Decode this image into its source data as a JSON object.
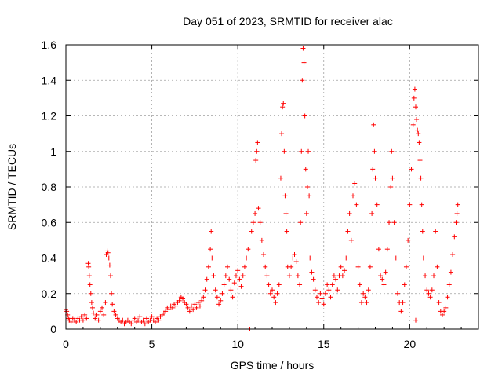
{
  "chart_data": {
    "type": "scatter",
    "title": "Day 051 of 2023, SRMTID for receiver alac",
    "xlabel": "GPS time / hours",
    "ylabel": "SRMTID / TECUs",
    "xlim": [
      0,
      24
    ],
    "ylim": [
      0,
      1.6
    ],
    "xticks": [
      0,
      5,
      10,
      15,
      20
    ],
    "xtick_labels": [
      "0",
      "5",
      "10",
      "15",
      "20"
    ],
    "yticks": [
      0,
      0.2,
      0.4,
      0.6,
      0.8,
      1.0,
      1.2,
      1.4,
      1.6
    ],
    "ytick_labels": [
      "0",
      "0.2",
      "0.4",
      "0.6",
      "0.8",
      "1",
      "1.2",
      "1.4",
      "1.6"
    ],
    "grid": true,
    "marker": "+",
    "color": "#ff0000",
    "series": [
      {
        "name": "SRMTID",
        "points": [
          [
            0.0,
            0.11
          ],
          [
            0.05,
            0.1
          ],
          [
            0.1,
            0.08
          ],
          [
            0.15,
            0.06
          ],
          [
            0.2,
            0.05
          ],
          [
            0.3,
            0.04
          ],
          [
            0.4,
            0.06
          ],
          [
            0.5,
            0.05
          ],
          [
            0.6,
            0.04
          ],
          [
            0.7,
            0.06
          ],
          [
            0.8,
            0.05
          ],
          [
            0.9,
            0.07
          ],
          [
            1.0,
            0.05
          ],
          [
            1.1,
            0.08
          ],
          [
            1.2,
            0.06
          ],
          [
            1.3,
            0.37
          ],
          [
            1.33,
            0.35
          ],
          [
            1.36,
            0.3
          ],
          [
            1.4,
            0.25
          ],
          [
            1.45,
            0.2
          ],
          [
            1.5,
            0.15
          ],
          [
            1.55,
            0.12
          ],
          [
            1.6,
            0.09
          ],
          [
            1.7,
            0.06
          ],
          [
            1.8,
            0.08
          ],
          [
            1.9,
            0.05
          ],
          [
            2.0,
            0.1
          ],
          [
            2.1,
            0.12
          ],
          [
            2.2,
            0.08
          ],
          [
            2.3,
            0.15
          ],
          [
            2.35,
            0.42
          ],
          [
            2.4,
            0.44
          ],
          [
            2.45,
            0.43
          ],
          [
            2.5,
            0.4
          ],
          [
            2.55,
            0.36
          ],
          [
            2.6,
            0.3
          ],
          [
            2.65,
            0.2
          ],
          [
            2.7,
            0.14
          ],
          [
            2.8,
            0.1
          ],
          [
            2.9,
            0.08
          ],
          [
            3.0,
            0.06
          ],
          [
            3.1,
            0.05
          ],
          [
            3.2,
            0.04
          ],
          [
            3.3,
            0.05
          ],
          [
            3.4,
            0.03
          ],
          [
            3.5,
            0.04
          ],
          [
            3.6,
            0.05
          ],
          [
            3.7,
            0.04
          ],
          [
            3.8,
            0.03
          ],
          [
            3.9,
            0.05
          ],
          [
            4.0,
            0.06
          ],
          [
            4.1,
            0.04
          ],
          [
            4.2,
            0.05
          ],
          [
            4.3,
            0.07
          ],
          [
            4.4,
            0.04
          ],
          [
            4.5,
            0.05
          ],
          [
            4.6,
            0.03
          ],
          [
            4.7,
            0.06
          ],
          [
            4.8,
            0.04
          ],
          [
            4.9,
            0.05
          ],
          [
            5.0,
            0.07
          ],
          [
            5.1,
            0.05
          ],
          [
            5.2,
            0.04
          ],
          [
            5.3,
            0.06
          ],
          [
            5.4,
            0.05
          ],
          [
            5.5,
            0.07
          ],
          [
            5.6,
            0.08
          ],
          [
            5.7,
            0.09
          ],
          [
            5.8,
            0.1
          ],
          [
            5.9,
            0.12
          ],
          [
            6.0,
            0.11
          ],
          [
            6.1,
            0.13
          ],
          [
            6.2,
            0.12
          ],
          [
            6.3,
            0.14
          ],
          [
            6.4,
            0.13
          ],
          [
            6.5,
            0.15
          ],
          [
            6.6,
            0.16
          ],
          [
            6.7,
            0.18
          ],
          [
            6.8,
            0.17
          ],
          [
            6.9,
            0.15
          ],
          [
            7.0,
            0.14
          ],
          [
            7.1,
            0.12
          ],
          [
            7.2,
            0.1
          ],
          [
            7.3,
            0.13
          ],
          [
            7.4,
            0.11
          ],
          [
            7.5,
            0.14
          ],
          [
            7.6,
            0.12
          ],
          [
            7.7,
            0.15
          ],
          [
            7.8,
            0.13
          ],
          [
            7.9,
            0.16
          ],
          [
            8.0,
            0.18
          ],
          [
            8.1,
            0.22
          ],
          [
            8.2,
            0.28
          ],
          [
            8.3,
            0.35
          ],
          [
            8.4,
            0.45
          ],
          [
            8.45,
            0.55
          ],
          [
            8.5,
            0.4
          ],
          [
            8.6,
            0.3
          ],
          [
            8.7,
            0.22
          ],
          [
            8.8,
            0.18
          ],
          [
            8.9,
            0.14
          ],
          [
            9.0,
            0.16
          ],
          [
            9.1,
            0.2
          ],
          [
            9.2,
            0.25
          ],
          [
            9.3,
            0.3
          ],
          [
            9.4,
            0.35
          ],
          [
            9.5,
            0.28
          ],
          [
            9.6,
            0.22
          ],
          [
            9.7,
            0.18
          ],
          [
            9.8,
            0.26
          ],
          [
            9.9,
            0.3
          ],
          [
            10.0,
            0.33
          ],
          [
            10.1,
            0.28
          ],
          [
            10.2,
            0.24
          ],
          [
            10.3,
            0.3
          ],
          [
            10.4,
            0.35
          ],
          [
            10.5,
            0.4
          ],
          [
            10.6,
            0.45
          ],
          [
            10.7,
            0.0
          ],
          [
            10.8,
            0.55
          ],
          [
            10.9,
            0.6
          ],
          [
            11.0,
            0.65
          ],
          [
            11.05,
            0.95
          ],
          [
            11.1,
            1.0
          ],
          [
            11.15,
            1.05
          ],
          [
            11.2,
            0.68
          ],
          [
            11.3,
            0.6
          ],
          [
            11.4,
            0.5
          ],
          [
            11.5,
            0.42
          ],
          [
            11.6,
            0.35
          ],
          [
            11.7,
            0.3
          ],
          [
            11.8,
            0.25
          ],
          [
            11.9,
            0.2
          ],
          [
            12.0,
            0.22
          ],
          [
            12.1,
            0.18
          ],
          [
            12.2,
            0.15
          ],
          [
            12.3,
            0.2
          ],
          [
            12.4,
            0.25
          ],
          [
            12.5,
            0.85
          ],
          [
            12.55,
            1.1
          ],
          [
            12.6,
            1.25
          ],
          [
            12.65,
            1.27
          ],
          [
            12.7,
            1.0
          ],
          [
            12.75,
            0.75
          ],
          [
            12.8,
            0.65
          ],
          [
            12.85,
            0.55
          ],
          [
            12.9,
            0.35
          ],
          [
            13.0,
            0.3
          ],
          [
            13.1,
            0.35
          ],
          [
            13.2,
            0.4
          ],
          [
            13.3,
            0.42
          ],
          [
            13.4,
            0.38
          ],
          [
            13.5,
            0.3
          ],
          [
            13.6,
            0.25
          ],
          [
            13.65,
            0.6
          ],
          [
            13.7,
            1.0
          ],
          [
            13.75,
            1.4
          ],
          [
            13.8,
            1.58
          ],
          [
            13.85,
            1.5
          ],
          [
            13.9,
            1.2
          ],
          [
            13.95,
            0.9
          ],
          [
            14.0,
            0.65
          ],
          [
            14.05,
            0.8
          ],
          [
            14.1,
            1.0
          ],
          [
            14.15,
            0.75
          ],
          [
            14.2,
            0.4
          ],
          [
            14.3,
            0.32
          ],
          [
            14.4,
            0.28
          ],
          [
            14.5,
            0.22
          ],
          [
            14.6,
            0.18
          ],
          [
            14.7,
            0.15
          ],
          [
            14.8,
            0.2
          ],
          [
            14.9,
            0.17
          ],
          [
            15.0,
            0.14
          ],
          [
            15.1,
            0.2
          ],
          [
            15.2,
            0.25
          ],
          [
            15.3,
            0.22
          ],
          [
            15.4,
            0.18
          ],
          [
            15.5,
            0.25
          ],
          [
            15.6,
            0.3
          ],
          [
            15.7,
            0.28
          ],
          [
            15.8,
            0.22
          ],
          [
            15.9,
            0.3
          ],
          [
            16.0,
            0.35
          ],
          [
            16.1,
            0.3
          ],
          [
            16.2,
            0.33
          ],
          [
            16.3,
            0.4
          ],
          [
            16.4,
            0.55
          ],
          [
            16.5,
            0.65
          ],
          [
            16.6,
            0.5
          ],
          [
            16.7,
            0.75
          ],
          [
            16.8,
            0.82
          ],
          [
            16.9,
            0.7
          ],
          [
            17.0,
            0.35
          ],
          [
            17.1,
            0.25
          ],
          [
            17.2,
            0.15
          ],
          [
            17.3,
            0.2
          ],
          [
            17.4,
            0.18
          ],
          [
            17.5,
            0.15
          ],
          [
            17.6,
            0.22
          ],
          [
            17.7,
            0.35
          ],
          [
            17.8,
            0.65
          ],
          [
            17.85,
            0.9
          ],
          [
            17.9,
            1.15
          ],
          [
            17.95,
            1.0
          ],
          [
            18.0,
            0.85
          ],
          [
            18.1,
            0.7
          ],
          [
            18.2,
            0.45
          ],
          [
            18.3,
            0.3
          ],
          [
            18.4,
            0.28
          ],
          [
            18.5,
            0.25
          ],
          [
            18.6,
            0.32
          ],
          [
            18.7,
            0.45
          ],
          [
            18.8,
            0.6
          ],
          [
            18.9,
            0.8
          ],
          [
            18.95,
            1.0
          ],
          [
            19.0,
            0.85
          ],
          [
            19.1,
            0.6
          ],
          [
            19.2,
            0.4
          ],
          [
            19.3,
            0.2
          ],
          [
            19.4,
            0.15
          ],
          [
            19.5,
            0.1
          ],
          [
            19.6,
            0.15
          ],
          [
            19.7,
            0.25
          ],
          [
            19.8,
            0.35
          ],
          [
            19.9,
            0.5
          ],
          [
            20.0,
            0.7
          ],
          [
            20.1,
            0.9
          ],
          [
            20.2,
            1.15
          ],
          [
            20.25,
            1.3
          ],
          [
            20.3,
            1.35
          ],
          [
            20.35,
            1.25
          ],
          [
            20.4,
            1.18
          ],
          [
            20.45,
            1.12
          ],
          [
            20.5,
            1.1
          ],
          [
            20.55,
            1.05
          ],
          [
            20.6,
            0.95
          ],
          [
            20.35,
            0.05
          ],
          [
            20.65,
            0.85
          ],
          [
            20.7,
            0.7
          ],
          [
            20.75,
            0.55
          ],
          [
            20.8,
            0.4
          ],
          [
            20.9,
            0.3
          ],
          [
            21.0,
            0.22
          ],
          [
            21.1,
            0.2
          ],
          [
            21.2,
            0.18
          ],
          [
            21.3,
            0.22
          ],
          [
            21.4,
            0.3
          ],
          [
            21.5,
            0.55
          ],
          [
            21.6,
            0.35
          ],
          [
            21.7,
            0.15
          ],
          [
            21.8,
            0.1
          ],
          [
            21.9,
            0.08
          ],
          [
            22.0,
            0.1
          ],
          [
            22.1,
            0.12
          ],
          [
            22.2,
            0.18
          ],
          [
            22.3,
            0.25
          ],
          [
            22.4,
            0.32
          ],
          [
            22.5,
            0.42
          ],
          [
            22.6,
            0.52
          ],
          [
            22.7,
            0.6
          ],
          [
            22.75,
            0.65
          ],
          [
            22.8,
            0.7
          ]
        ]
      }
    ]
  }
}
